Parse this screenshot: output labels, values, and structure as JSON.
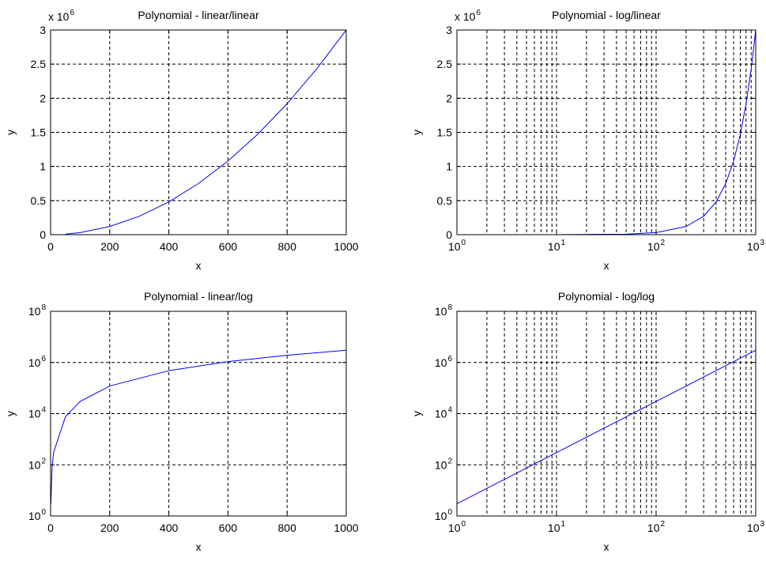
{
  "chart_data": [
    {
      "type": "line",
      "title": "Polynomial - linear/linear",
      "xlabel": "x",
      "ylabel": "y",
      "xscale": "linear",
      "yscale": "linear",
      "xlim": [
        0,
        1000
      ],
      "ylim": [
        0,
        3000000
      ],
      "grid": true,
      "x_ticks": [
        0,
        200,
        400,
        600,
        800,
        1000
      ],
      "x_tick_labels": [
        "0",
        "200",
        "400",
        "600",
        "800",
        "1000"
      ],
      "y_ticks": [
        0,
        500000,
        1000000,
        1500000,
        2000000,
        2500000,
        3000000
      ],
      "y_tick_labels": [
        "0",
        "0.5",
        "1",
        "1.5",
        "2",
        "2.5",
        "3"
      ],
      "y_multiplier": {
        "base": "x 10",
        "exp": "6"
      },
      "series": [
        {
          "color": "#0000ff",
          "formula": "y = 3x^2",
          "x": [
            50,
            100,
            200,
            300,
            400,
            500,
            600,
            700,
            800,
            900,
            1000
          ],
          "y": [
            7500,
            30000,
            120000,
            270000,
            480000,
            750000,
            1080000,
            1470000,
            1920000,
            2430000,
            3000000
          ]
        }
      ]
    },
    {
      "type": "line",
      "title": "Polynomial - log/linear",
      "xlabel": "x",
      "ylabel": "y",
      "xscale": "log",
      "yscale": "linear",
      "xlim": [
        1,
        1000
      ],
      "ylim": [
        0,
        3000000
      ],
      "grid": true,
      "x_ticks": [
        1,
        10,
        100,
        1000
      ],
      "x_tick_labels": [
        {
          "base": "10",
          "exp": "0"
        },
        {
          "base": "10",
          "exp": "1"
        },
        {
          "base": "10",
          "exp": "2"
        },
        {
          "base": "10",
          "exp": "3"
        }
      ],
      "y_ticks": [
        0,
        500000,
        1000000,
        1500000,
        2000000,
        2500000,
        3000000
      ],
      "y_tick_labels": [
        "0",
        "0.5",
        "1",
        "1.5",
        "2",
        "2.5",
        "3"
      ],
      "y_multiplier": {
        "base": "x 10",
        "exp": "6"
      },
      "series": [
        {
          "color": "#0000ff",
          "formula": "y = 3x^2",
          "x": [
            1,
            10,
            50,
            100,
            200,
            300,
            400,
            500,
            600,
            700,
            800,
            900,
            1000
          ],
          "y": [
            3,
            300,
            7500,
            30000,
            120000,
            270000,
            480000,
            750000,
            1080000,
            1470000,
            1920000,
            2430000,
            3000000
          ]
        }
      ]
    },
    {
      "type": "line",
      "title": "Polynomial - linear/log",
      "xlabel": "x",
      "ylabel": "y",
      "xscale": "linear",
      "yscale": "log",
      "xlim": [
        0,
        1000
      ],
      "ylim": [
        1,
        100000000
      ],
      "grid": true,
      "x_ticks": [
        0,
        200,
        400,
        600,
        800,
        1000
      ],
      "x_tick_labels": [
        "0",
        "200",
        "400",
        "600",
        "800",
        "1000"
      ],
      "y_ticks": [
        1,
        100,
        10000,
        1000000,
        100000000
      ],
      "y_tick_labels": [
        {
          "base": "10",
          "exp": "0"
        },
        {
          "base": "10",
          "exp": "2"
        },
        {
          "base": "10",
          "exp": "4"
        },
        {
          "base": "10",
          "exp": "6"
        },
        {
          "base": "10",
          "exp": "8"
        }
      ],
      "series": [
        {
          "color": "#0000ff",
          "formula": "y = 3x^2",
          "x": [
            1,
            5,
            10,
            50,
            100,
            200,
            400,
            600,
            800,
            1000
          ],
          "y": [
            3,
            75,
            300,
            7500,
            30000,
            120000,
            480000,
            1080000,
            1920000,
            3000000
          ]
        }
      ]
    },
    {
      "type": "line",
      "title": "Polynomial - log/log",
      "xlabel": "x",
      "ylabel": "y",
      "xscale": "log",
      "yscale": "log",
      "xlim": [
        1,
        1000
      ],
      "ylim": [
        1,
        100000000
      ],
      "grid": true,
      "x_ticks": [
        1,
        10,
        100,
        1000
      ],
      "x_tick_labels": [
        {
          "base": "10",
          "exp": "0"
        },
        {
          "base": "10",
          "exp": "1"
        },
        {
          "base": "10",
          "exp": "2"
        },
        {
          "base": "10",
          "exp": "3"
        }
      ],
      "y_ticks": [
        1,
        100,
        10000,
        1000000,
        100000000
      ],
      "y_tick_labels": [
        {
          "base": "10",
          "exp": "0"
        },
        {
          "base": "10",
          "exp": "2"
        },
        {
          "base": "10",
          "exp": "4"
        },
        {
          "base": "10",
          "exp": "6"
        },
        {
          "base": "10",
          "exp": "8"
        }
      ],
      "series": [
        {
          "color": "#0000ff",
          "formula": "y = 3x^2",
          "x": [
            1,
            10,
            100,
            1000
          ],
          "y": [
            3,
            300,
            30000,
            3000000
          ]
        }
      ]
    }
  ]
}
